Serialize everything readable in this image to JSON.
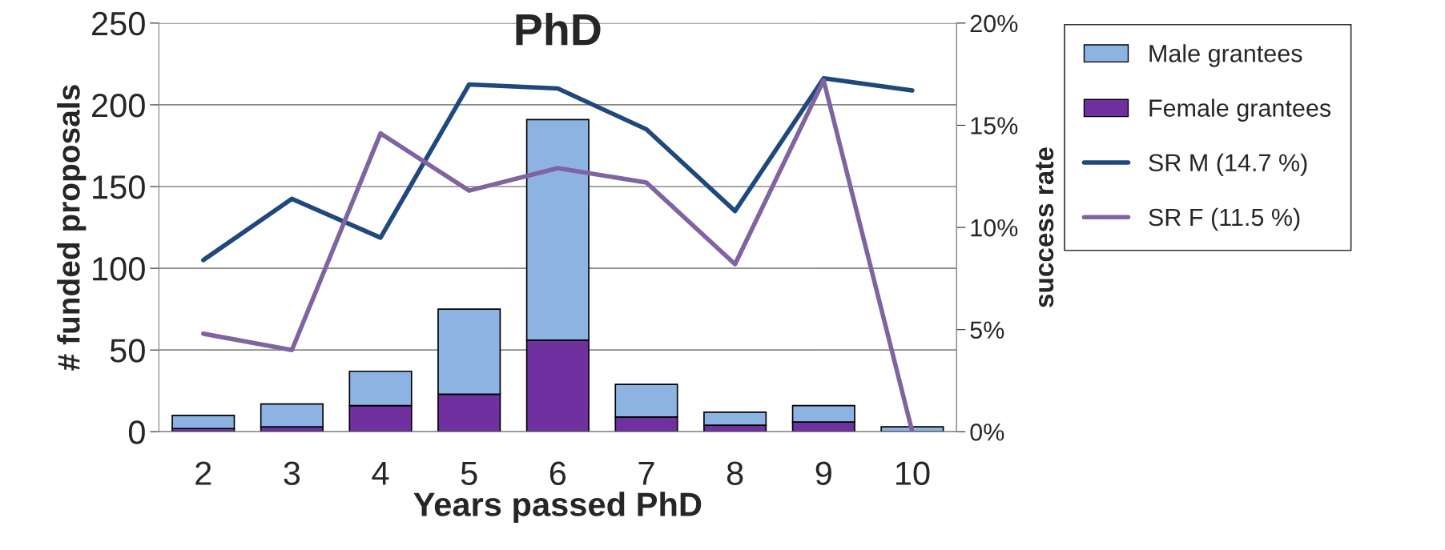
{
  "chart_data": {
    "type": "bar",
    "title": "PhD",
    "xlabel": "Years passed PhD",
    "ylabel": "# funded proposals",
    "y2label": "success rate",
    "categories": [
      "2",
      "3",
      "4",
      "5",
      "6",
      "7",
      "8",
      "9",
      "10"
    ],
    "stacked": true,
    "series": [
      {
        "name": "Female grantees",
        "color": "#7030a0",
        "values": [
          2,
          3,
          16,
          23,
          56,
          9,
          4,
          6,
          0
        ]
      },
      {
        "name": "Male grantees",
        "color": "#8db3e2",
        "values": [
          8,
          14,
          21,
          52,
          135,
          20,
          8,
          10,
          3
        ]
      },
      {
        "name": "SR M (14.7 %)",
        "type": "line",
        "axis": "y2",
        "color": "#1f497d",
        "values": [
          8.4,
          11.4,
          9.5,
          17.0,
          16.8,
          14.8,
          10.8,
          17.3,
          16.7
        ]
      },
      {
        "name": "SR F (11.5 %)",
        "type": "line",
        "axis": "y2",
        "color": "#8064a2",
        "values": [
          4.8,
          4.0,
          14.6,
          11.8,
          12.9,
          12.2,
          8.2,
          17.2,
          0
        ]
      }
    ],
    "ylim": [
      0,
      250
    ],
    "yticks": [
      0,
      50,
      100,
      150,
      200,
      250
    ],
    "y2lim": [
      0,
      20
    ],
    "y2ticks": [
      {
        "value": 0,
        "label": "0%"
      },
      {
        "value": 5,
        "label": "5%"
      },
      {
        "value": 10,
        "label": "10%"
      },
      {
        "value": 15,
        "label": "15%"
      },
      {
        "value": 20,
        "label": "20%"
      }
    ],
    "grid": "y",
    "legend": "right",
    "marker": "none",
    "line_style": "solid"
  }
}
